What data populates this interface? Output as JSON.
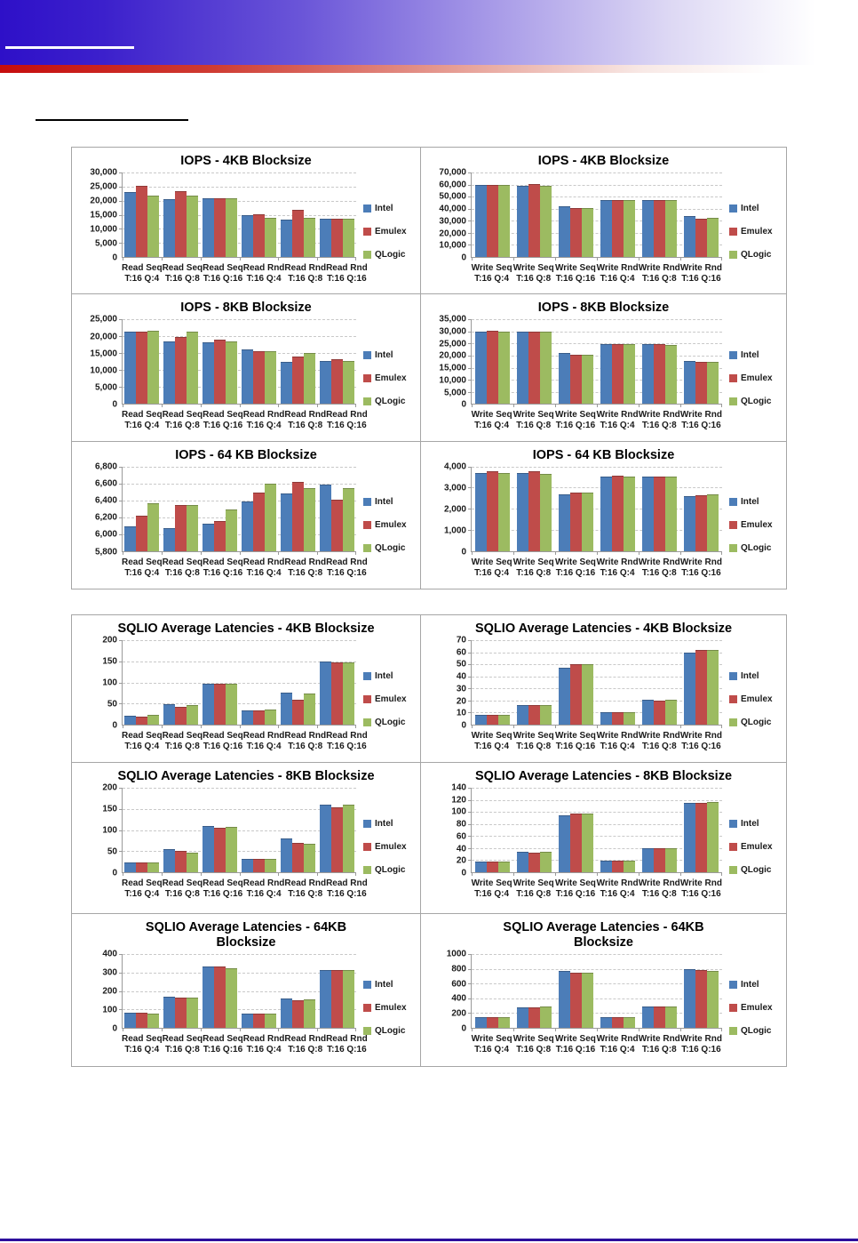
{
  "header": {
    "accent_blue": "#2e10c8",
    "accent_red": "#c60d0d",
    "footer_color": "#2d0d9c"
  },
  "legend_labels": [
    "Intel",
    "Emulex",
    "QLogic"
  ],
  "colors": {
    "intel": "#4C7DB8",
    "emulex": "#BF4C4A",
    "qlogic": "#9CBB61"
  },
  "categories_read_top": [
    "Read Seq",
    "Read Seq",
    "Read Seq",
    "Read Rnd",
    "Read Rnd",
    "Read Rnd"
  ],
  "categories_write_top": [
    "Write Seq",
    "Write Seq",
    "Write Seq",
    "Write Rnd",
    "Write Rnd",
    "Write Rnd"
  ],
  "categories_bottom": [
    "T:16 Q:4",
    "T:16 Q:8",
    "T:16 Q:16",
    "T:16 Q:4",
    "T:16 Q:8",
    "T:16 Q:16"
  ],
  "chart_data": [
    {
      "type": "bar",
      "title": "IOPS - 4KB Blocksize",
      "title2": "",
      "cats": "read",
      "ylim": [
        0,
        30000
      ],
      "ystep": 5000,
      "comma": true,
      "legend_position": "right",
      "grid": true,
      "series": [
        {
          "name": "Intel",
          "values": [
            23200,
            20400,
            21000,
            14900,
            13400,
            13700
          ]
        },
        {
          "name": "Emulex",
          "values": [
            25400,
            23500,
            21000,
            15100,
            16600,
            13700
          ]
        },
        {
          "name": "QLogic",
          "values": [
            21700,
            21700,
            21000,
            13900,
            13900,
            13700
          ]
        }
      ]
    },
    {
      "type": "bar",
      "title": "IOPS - 4KB Blocksize",
      "title2": "",
      "cats": "write",
      "ylim": [
        0,
        70000
      ],
      "ystep": 10000,
      "comma": true,
      "legend_position": "right",
      "grid": true,
      "series": [
        {
          "name": "Intel",
          "values": [
            59500,
            59000,
            42000,
            47500,
            47000,
            34000
          ]
        },
        {
          "name": "Emulex",
          "values": [
            60000,
            60200,
            40200,
            47500,
            47500,
            32000
          ]
        },
        {
          "name": "QLogic",
          "values": [
            60000,
            59000,
            40200,
            47500,
            47000,
            32300
          ]
        }
      ]
    },
    {
      "type": "bar",
      "title": "IOPS - 8KB Blocksize",
      "title2": "",
      "cats": "read",
      "ylim": [
        0,
        25000
      ],
      "ystep": 5000,
      "comma": true,
      "legend_position": "right",
      "grid": true,
      "series": [
        {
          "name": "Intel",
          "values": [
            21300,
            18500,
            18300,
            16100,
            12500,
            12700
          ]
        },
        {
          "name": "Emulex",
          "values": [
            21300,
            19800,
            19000,
            15600,
            14100,
            13200
          ]
        },
        {
          "name": "QLogic",
          "values": [
            21600,
            21300,
            18600,
            15600,
            15100,
            12700
          ]
        }
      ]
    },
    {
      "type": "bar",
      "title": "IOPS - 8KB Blocksize",
      "title2": "",
      "cats": "write",
      "ylim": [
        0,
        35000
      ],
      "ystep": 5000,
      "comma": true,
      "legend_position": "right",
      "grid": true,
      "series": [
        {
          "name": "Intel",
          "values": [
            29800,
            29800,
            21100,
            24700,
            24700,
            17700
          ]
        },
        {
          "name": "Emulex",
          "values": [
            30500,
            30100,
            20400,
            24700,
            24700,
            17400
          ]
        },
        {
          "name": "QLogic",
          "values": [
            30000,
            29800,
            20300,
            24700,
            24300,
            17400
          ]
        }
      ]
    },
    {
      "type": "bar",
      "title": "IOPS - 64 KB Blocksize",
      "title2": "",
      "cats": "read",
      "ylim": [
        5800,
        6800
      ],
      "ystep": 200,
      "comma": true,
      "legend_position": "right",
      "grid": true,
      "series": [
        {
          "name": "Intel",
          "values": [
            6090,
            6070,
            6120,
            6390,
            6480,
            6590
          ]
        },
        {
          "name": "Emulex",
          "values": [
            6220,
            6340,
            6150,
            6490,
            6620,
            6410
          ]
        },
        {
          "name": "QLogic",
          "values": [
            6360,
            6340,
            6290,
            6600,
            6540,
            6540
          ]
        }
      ]
    },
    {
      "type": "bar",
      "title": "IOPS - 64 KB Blocksize",
      "title2": "",
      "cats": "write",
      "ylim": [
        0,
        4000
      ],
      "ystep": 1000,
      "comma": true,
      "legend_position": "right",
      "grid": true,
      "series": [
        {
          "name": "Intel",
          "values": [
            3680,
            3700,
            2700,
            3530,
            3530,
            2590
          ]
        },
        {
          "name": "Emulex",
          "values": [
            3760,
            3760,
            2780,
            3560,
            3530,
            2630
          ]
        },
        {
          "name": "QLogic",
          "values": [
            3680,
            3640,
            2770,
            3530,
            3530,
            2670
          ]
        }
      ]
    },
    {
      "type": "bar",
      "title": "SQLIO Average Latencies - 4KB Blocksize",
      "title2": "",
      "cats": "read",
      "ylim": [
        0,
        200
      ],
      "ystep": 50,
      "comma": false,
      "legend_position": "right",
      "grid": true,
      "series": [
        {
          "name": "Intel",
          "values": [
            22,
            49,
            97,
            33,
            76,
            150
          ]
        },
        {
          "name": "Emulex",
          "values": [
            18,
            42,
            97,
            33,
            60,
            148
          ]
        },
        {
          "name": "QLogic",
          "values": [
            24,
            46,
            97,
            35,
            74,
            148
          ]
        }
      ]
    },
    {
      "type": "bar",
      "title": "SQLIO Average Latencies - 4KB Blocksize",
      "title2": "",
      "cats": "write",
      "ylim": [
        0,
        70
      ],
      "ystep": 10,
      "comma": false,
      "legend_position": "right",
      "grid": true,
      "series": [
        {
          "name": "Intel",
          "values": [
            8,
            16,
            47,
            10,
            21,
            60
          ]
        },
        {
          "name": "Emulex",
          "values": [
            8,
            16,
            50,
            10,
            20,
            62
          ]
        },
        {
          "name": "QLogic",
          "values": [
            8,
            16,
            50,
            10,
            21,
            62
          ]
        }
      ]
    },
    {
      "type": "bar",
      "title": "SQLIO Average Latencies - 8KB Blocksize",
      "title2": "",
      "cats": "read",
      "ylim": [
        0,
        200
      ],
      "ystep": 50,
      "comma": false,
      "legend_position": "right",
      "grid": true,
      "series": [
        {
          "name": "Intel",
          "values": [
            24,
            54,
            110,
            31,
            79,
            160
          ]
        },
        {
          "name": "Emulex",
          "values": [
            24,
            51,
            106,
            31,
            70,
            154
          ]
        },
        {
          "name": "QLogic",
          "values": [
            24,
            47,
            108,
            31,
            67,
            160
          ]
        }
      ]
    },
    {
      "type": "bar",
      "title": "SQLIO Average Latencies - 8KB Blocksize",
      "title2": "",
      "cats": "write",
      "ylim": [
        0,
        140
      ],
      "ystep": 20,
      "comma": false,
      "legend_position": "right",
      "grid": true,
      "series": [
        {
          "name": "Intel",
          "values": [
            17,
            34,
            95,
            19,
            40,
            115
          ]
        },
        {
          "name": "Emulex",
          "values": [
            17,
            33,
            98,
            19,
            40,
            115
          ]
        },
        {
          "name": "QLogic",
          "values": [
            17,
            34,
            98,
            19,
            40,
            117
          ]
        }
      ]
    },
    {
      "type": "bar",
      "title": "SQLIO Average Latencies - 64KB",
      "title2": "Blocksize",
      "cats": "read",
      "ylim": [
        0,
        400
      ],
      "ystep": 100,
      "comma": false,
      "legend_position": "right",
      "grid": true,
      "series": [
        {
          "name": "Intel",
          "values": [
            82,
            168,
            333,
            76,
            157,
            311
          ]
        },
        {
          "name": "Emulex",
          "values": [
            82,
            162,
            333,
            76,
            150,
            315
          ]
        },
        {
          "name": "QLogic",
          "values": [
            75,
            162,
            323,
            76,
            155,
            311
          ]
        }
      ]
    },
    {
      "type": "bar",
      "title": "SQLIO Average Latencies - 64KB",
      "title2": "Blocksize",
      "cats": "write",
      "ylim": [
        0,
        1000
      ],
      "ystep": 200,
      "comma": false,
      "legend_position": "right",
      "grid": true,
      "series": [
        {
          "name": "Intel",
          "values": [
            145,
            280,
            770,
            145,
            290,
            800
          ]
        },
        {
          "name": "Emulex",
          "values": [
            145,
            280,
            745,
            145,
            290,
            785
          ]
        },
        {
          "name": "QLogic",
          "values": [
            145,
            290,
            745,
            145,
            290,
            775
          ]
        }
      ]
    }
  ]
}
